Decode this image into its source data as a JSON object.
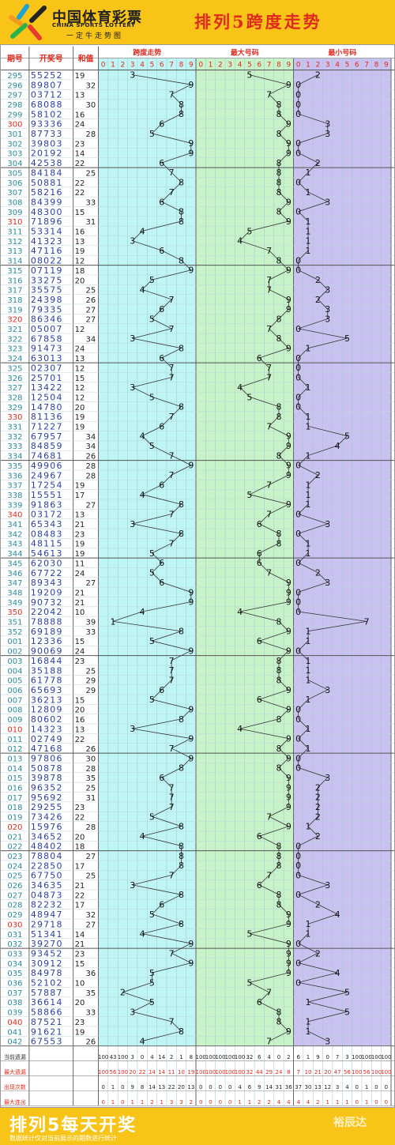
{
  "header": {
    "cn_title": "中国体育彩票",
    "en_title": "CHINA SPORTS LOTTERY",
    "slogan": "一定牛走势图",
    "main_title": "排列5跨度走势"
  },
  "footer": {
    "title": "排列5每天开奖",
    "note": "数据统计仅对当前展示的期数进行统计",
    "brand": "裕辰达"
  },
  "colors": {
    "accent": "#f7c417",
    "title_red": "#e02a1e",
    "period_blue": "#2a8a9a",
    "number_blue": "#2b3ea0",
    "span_bg": "#bff5f5",
    "max_bg": "#c8f3c8",
    "min_bg": "#c9c2f0"
  },
  "chart_data": {
    "type": "table",
    "title": "排列5跨度走势",
    "columns": [
      "期号",
      "开奖号",
      "和值"
    ],
    "sections": [
      "跨度走势",
      "最大号码",
      "最小号码"
    ],
    "digits": [
      0,
      1,
      2,
      3,
      4,
      5,
      6,
      7,
      8,
      9
    ],
    "rows": [
      [
        "295",
        "55252",
        19,
        3,
        5,
        2
      ],
      [
        "296",
        "89807",
        32,
        9,
        9,
        0
      ],
      [
        "297",
        "03712",
        13,
        7,
        7,
        0
      ],
      [
        "298",
        "68088",
        30,
        8,
        8,
        0
      ],
      [
        "299",
        "58102",
        16,
        8,
        8,
        0
      ],
      [
        "300",
        "93336",
        24,
        6,
        9,
        3
      ],
      [
        "301",
        "87733",
        28,
        5,
        8,
        3
      ],
      [
        "302",
        "39803",
        23,
        9,
        9,
        0
      ],
      [
        "303",
        "20192",
        14,
        9,
        9,
        0
      ],
      [
        "304",
        "42538",
        22,
        6,
        8,
        2
      ],
      [
        "305",
        "84184",
        25,
        7,
        8,
        1
      ],
      [
        "306",
        "50881",
        22,
        8,
        8,
        0
      ],
      [
        "307",
        "58216",
        22,
        7,
        8,
        1
      ],
      [
        "308",
        "84399",
        33,
        6,
        9,
        3
      ],
      [
        "309",
        "48300",
        15,
        8,
        8,
        0
      ],
      [
        "310",
        "71896",
        31,
        8,
        9,
        1
      ],
      [
        "311",
        "53314",
        16,
        4,
        5,
        1
      ],
      [
        "312",
        "41323",
        13,
        3,
        4,
        1
      ],
      [
        "313",
        "47116",
        19,
        6,
        7,
        1
      ],
      [
        "314",
        "08022",
        12,
        8,
        8,
        0
      ],
      [
        "315",
        "07119",
        18,
        9,
        9,
        0
      ],
      [
        "316",
        "33275",
        20,
        5,
        7,
        2
      ],
      [
        "317",
        "35575",
        25,
        4,
        7,
        3
      ],
      [
        "318",
        "24398",
        26,
        7,
        9,
        2
      ],
      [
        "319",
        "79335",
        27,
        6,
        9,
        3
      ],
      [
        "320",
        "86346",
        27,
        5,
        8,
        3
      ],
      [
        "321",
        "05007",
        12,
        7,
        7,
        0
      ],
      [
        "322",
        "67858",
        34,
        3,
        8,
        5
      ],
      [
        "323",
        "91473",
        24,
        8,
        9,
        1
      ],
      [
        "324",
        "63013",
        13,
        6,
        6,
        0
      ],
      [
        "325",
        "02307",
        12,
        7,
        7,
        0
      ],
      [
        "326",
        "25701",
        15,
        7,
        7,
        0
      ],
      [
        "327",
        "13422",
        12,
        3,
        4,
        1
      ],
      [
        "328",
        "12504",
        12,
        5,
        5,
        0
      ],
      [
        "329",
        "14780",
        20,
        8,
        8,
        0
      ],
      [
        "330",
        "81136",
        19,
        7,
        8,
        1
      ],
      [
        "331",
        "71227",
        19,
        6,
        7,
        1
      ],
      [
        "332",
        "67957",
        34,
        4,
        9,
        5
      ],
      [
        "333",
        "84859",
        34,
        5,
        9,
        4
      ],
      [
        "334",
        "74681",
        26,
        7,
        8,
        1
      ],
      [
        "335",
        "49906",
        28,
        9,
        9,
        0
      ],
      [
        "336",
        "24967",
        28,
        7,
        9,
        2
      ],
      [
        "337",
        "17254",
        19,
        6,
        7,
        1
      ],
      [
        "338",
        "15551",
        17,
        4,
        5,
        1
      ],
      [
        "339",
        "91863",
        27,
        8,
        9,
        1
      ],
      [
        "340",
        "03172",
        13,
        7,
        7,
        0
      ],
      [
        "341",
        "65343",
        21,
        3,
        6,
        3
      ],
      [
        "342",
        "08483",
        23,
        8,
        8,
        0
      ],
      [
        "343",
        "48115",
        19,
        7,
        8,
        1
      ],
      [
        "344",
        "54613",
        19,
        5,
        6,
        1
      ],
      [
        "345",
        "62030",
        11,
        6,
        6,
        0
      ],
      [
        "346",
        "67722",
        24,
        5,
        7,
        2
      ],
      [
        "347",
        "89343",
        27,
        6,
        9,
        3
      ],
      [
        "348",
        "19209",
        21,
        9,
        9,
        0
      ],
      [
        "349",
        "90732",
        21,
        9,
        9,
        0
      ],
      [
        "350",
        "22042",
        10,
        4,
        4,
        0
      ],
      [
        "351",
        "78888",
        39,
        1,
        8,
        7
      ],
      [
        "352",
        "69189",
        33,
        8,
        9,
        1
      ],
      [
        "001",
        "12336",
        15,
        5,
        6,
        1
      ],
      [
        "002",
        "90069",
        24,
        9,
        9,
        0
      ],
      [
        "003",
        "16844",
        23,
        7,
        8,
        1
      ],
      [
        "004",
        "35188",
        25,
        7,
        8,
        1
      ],
      [
        "005",
        "61778",
        29,
        7,
        8,
        1
      ],
      [
        "006",
        "65693",
        29,
        6,
        9,
        3
      ],
      [
        "007",
        "36213",
        15,
        5,
        6,
        1
      ],
      [
        "008",
        "12809",
        20,
        9,
        9,
        0
      ],
      [
        "009",
        "80602",
        16,
        8,
        8,
        0
      ],
      [
        "010",
        "14323",
        13,
        3,
        4,
        1
      ],
      [
        "011",
        "02749",
        22,
        9,
        9,
        0
      ],
      [
        "012",
        "47168",
        26,
        7,
        8,
        1
      ],
      [
        "013",
        "97806",
        30,
        9,
        9,
        0
      ],
      [
        "014",
        "50878",
        28,
        8,
        8,
        0
      ],
      [
        "015",
        "39878",
        35,
        6,
        9,
        3
      ],
      [
        "016",
        "96352",
        25,
        7,
        9,
        2
      ],
      [
        "017",
        "95692",
        31,
        7,
        9,
        2
      ],
      [
        "018",
        "29255",
        23,
        7,
        9,
        2
      ],
      [
        "019",
        "73426",
        22,
        5,
        7,
        2
      ],
      [
        "020",
        "15976",
        28,
        8,
        9,
        1
      ],
      [
        "021",
        "34652",
        20,
        4,
        6,
        2
      ],
      [
        "022",
        "48402",
        18,
        8,
        8,
        0
      ],
      [
        "023",
        "78804",
        27,
        8,
        8,
        0
      ],
      [
        "024",
        "22850",
        17,
        8,
        8,
        0
      ],
      [
        "025",
        "67750",
        25,
        7,
        7,
        0
      ],
      [
        "026",
        "34635",
        21,
        3,
        6,
        3
      ],
      [
        "027",
        "04873",
        22,
        8,
        8,
        0
      ],
      [
        "028",
        "82232",
        17,
        6,
        8,
        2
      ],
      [
        "029",
        "48947",
        32,
        5,
        9,
        4
      ],
      [
        "030",
        "29718",
        27,
        8,
        9,
        1
      ],
      [
        "031",
        "51341",
        14,
        4,
        5,
        1
      ],
      [
        "032",
        "39270",
        21,
        9,
        9,
        0
      ],
      [
        "033",
        "93452",
        23,
        7,
        9,
        2
      ],
      [
        "034",
        "30912",
        15,
        9,
        9,
        0
      ],
      [
        "035",
        "84978",
        36,
        5,
        9,
        4
      ],
      [
        "036",
        "52102",
        10,
        5,
        5,
        0
      ],
      [
        "037",
        "57887",
        35,
        2,
        7,
        5
      ],
      [
        "038",
        "36614",
        20,
        5,
        6,
        1
      ],
      [
        "039",
        "58866",
        33,
        3,
        8,
        5
      ],
      [
        "040",
        "87521",
        23,
        7,
        8,
        1
      ],
      [
        "041",
        "91621",
        19,
        8,
        9,
        1
      ],
      [
        "042",
        "67553",
        26,
        4,
        7,
        3
      ]
    ],
    "stats": [
      {
        "label": "当前遗漏",
        "values": [
          100,
          43,
          100,
          3,
          0,
          4,
          14,
          2,
          1,
          8,
          100,
          100,
          100,
          100,
          100,
          32,
          6,
          4,
          0,
          2,
          6,
          1,
          9,
          0,
          7,
          3,
          100,
          100,
          100,
          100
        ]
      },
      {
        "label": "最大遗漏",
        "values": [
          100,
          56,
          100,
          20,
          22,
          14,
          14,
          11,
          10,
          19,
          100,
          100,
          100,
          100,
          100,
          32,
          44,
          29,
          24,
          8,
          7,
          10,
          21,
          20,
          47,
          56,
          100,
          56,
          100,
          100
        ]
      },
      {
        "label": "出现次数",
        "values": [
          0,
          1,
          0,
          9,
          8,
          14,
          13,
          22,
          20,
          13,
          0,
          0,
          0,
          0,
          4,
          6,
          9,
          14,
          31,
          36,
          37,
          30,
          13,
          12,
          3,
          4,
          0,
          1,
          0,
          0
        ]
      },
      {
        "label": "最大连出",
        "values": [
          0,
          1,
          0,
          1,
          1,
          2,
          1,
          3,
          3,
          2,
          0,
          0,
          0,
          0,
          1,
          1,
          2,
          2,
          4,
          4,
          4,
          4,
          2,
          1,
          1,
          1,
          0,
          1,
          0,
          0
        ]
      }
    ]
  }
}
